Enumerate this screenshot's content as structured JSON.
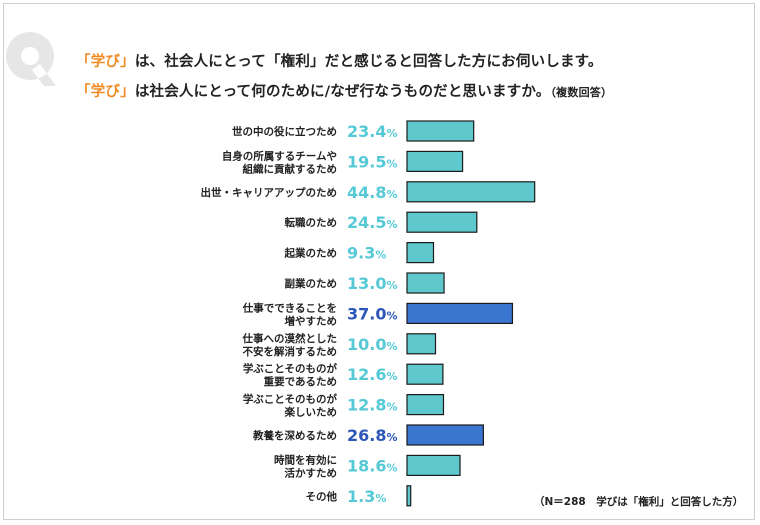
{
  "header": {
    "line1": [
      {
        "text": "「学び」",
        "accent": true
      },
      {
        "text": "は、社会人にとって「権利」だと感じると回答した方にお伺いします。",
        "accent": false
      }
    ],
    "line2": [
      {
        "text": "「学び」",
        "accent": true
      },
      {
        "text": "は社会人にとって何のために/なぜ行なうものだと思いますか。",
        "accent": false
      },
      {
        "text": "（複数回答）",
        "accent": false,
        "small": true
      }
    ]
  },
  "footnote": "（N＝288　学びは「権利」と回答した方）",
  "colors": {
    "accent": "#f08a24",
    "bar_normal": "#5fc8cc",
    "bar_highlight": "#3a75d0",
    "value_normal": "#55c9d6",
    "value_highlight": "#2b56b8",
    "q_mark": "#e6e6e6"
  },
  "chart_data": {
    "type": "bar",
    "orientation": "horizontal",
    "unit": "%",
    "categories": [
      [
        "世の中の役に立つため"
      ],
      [
        "自身の所属するチームや",
        "組織に貢献するため"
      ],
      [
        "出世・キャリアアップのため"
      ],
      [
        "転職のため"
      ],
      [
        "起業のため"
      ],
      [
        "副業のため"
      ],
      [
        "仕事でできることを",
        "増やすため"
      ],
      [
        "仕事への漠然とした",
        "不安を解消するため"
      ],
      [
        "学ぶことそのものが",
        "重要であるため"
      ],
      [
        "学ぶことそのものが",
        "楽しいため"
      ],
      [
        "教養を深めるため"
      ],
      [
        "時間を有効に",
        "活かすため"
      ],
      [
        "その他"
      ]
    ],
    "values": [
      23.4,
      19.5,
      44.8,
      24.5,
      9.3,
      13.0,
      37.0,
      10.0,
      12.6,
      12.8,
      26.8,
      18.6,
      1.3
    ],
    "value_labels": [
      "23.4",
      "19.5",
      "44.8",
      "24.5",
      "9.3",
      "13.0",
      "37.0",
      "10.0",
      "12.6",
      "12.8",
      "26.8",
      "18.6",
      "1.3"
    ],
    "highlight": [
      false,
      false,
      false,
      false,
      false,
      false,
      true,
      false,
      false,
      false,
      true,
      false,
      false
    ],
    "xlim": [
      0,
      100
    ],
    "grid": false,
    "legend": "none"
  }
}
